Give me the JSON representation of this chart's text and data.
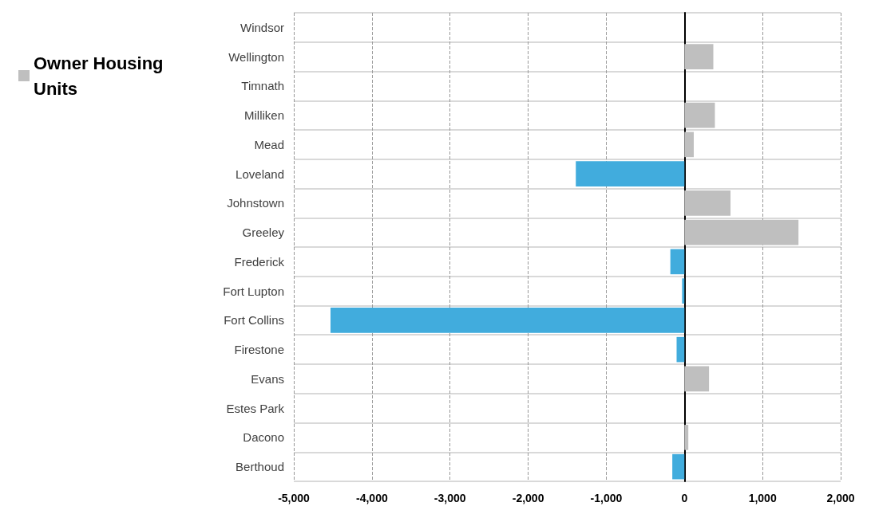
{
  "chart_data": {
    "type": "bar",
    "orientation": "horizontal",
    "categories": [
      "Windsor",
      "Wellington",
      "Timnath",
      "Milliken",
      "Mead",
      "Loveland",
      "Johnstown",
      "Greeley",
      "Frederick",
      "Fort Lupton",
      "Fort Collins",
      "Firestone",
      "Evans",
      "Estes Park",
      "Dacono",
      "Berthoud"
    ],
    "series": [
      {
        "name": "Owner Housing Units",
        "color": "#bfbfbf",
        "values": [
          0,
          370,
          0,
          390,
          120,
          -1390,
          590,
          1460,
          -180,
          -30,
          -4530,
          -100,
          315,
          0,
          50,
          -155
        ],
        "colors": [
          "#bfbfbf",
          "#bfbfbf",
          "#bfbfbf",
          "#bfbfbf",
          "#bfbfbf",
          "#41acdd",
          "#bfbfbf",
          "#bfbfbf",
          "#41acdd",
          "#41acdd",
          "#41acdd",
          "#41acdd",
          "#bfbfbf",
          "#bfbfbf",
          "#bfbfbf",
          "#41acdd"
        ]
      }
    ],
    "xlim": [
      -5000,
      2000
    ],
    "xticks": [
      {
        "value": -5000,
        "label": "-5,000"
      },
      {
        "value": -4000,
        "label": "-4,000"
      },
      {
        "value": -3000,
        "label": "-3,000"
      },
      {
        "value": -2000,
        "label": "-2,000"
      },
      {
        "value": -1000,
        "label": "-1,000"
      },
      0,
      {
        "value": 1000,
        "label": "1,000"
      },
      {
        "value": 2000,
        "label": "2,000"
      }
    ],
    "grid": true,
    "legend": "top left"
  }
}
